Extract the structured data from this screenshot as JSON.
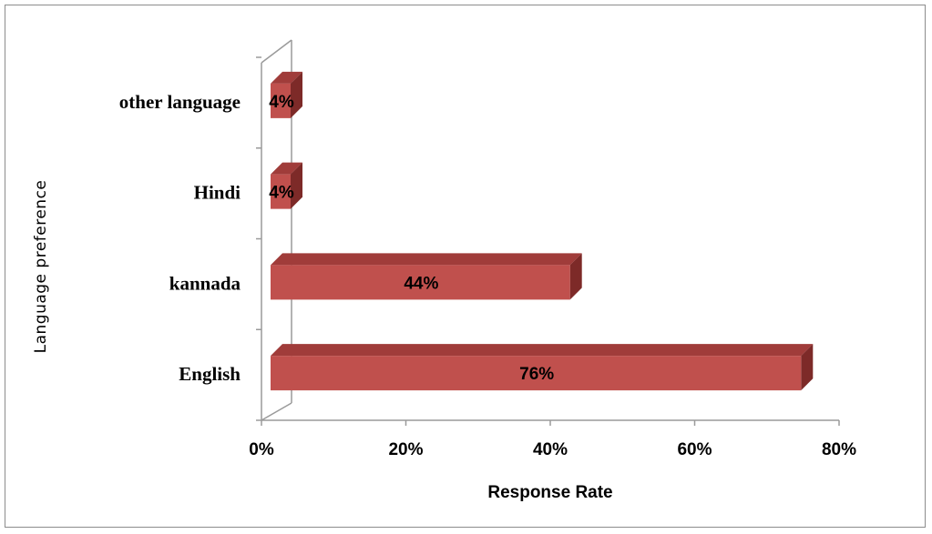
{
  "chart_data": {
    "type": "bar",
    "orientation": "horizontal",
    "three_d": true,
    "categories": [
      "English",
      "kannada",
      "Hindi",
      "other language"
    ],
    "values": [
      76,
      44,
      4,
      4
    ],
    "data_labels": [
      "76%",
      "44%",
      "4%",
      "4%"
    ],
    "xlabel": "Response Rate",
    "ylabel": "Language preference",
    "xlim": [
      0,
      80
    ],
    "xticks": [
      "0%",
      "20%",
      "40%",
      "60%",
      "80%"
    ],
    "grid": false,
    "legend": "none",
    "bar_color": "#c0504d",
    "bar_top_color": "#a03c3a",
    "bar_side_color": "#7d2a28"
  }
}
